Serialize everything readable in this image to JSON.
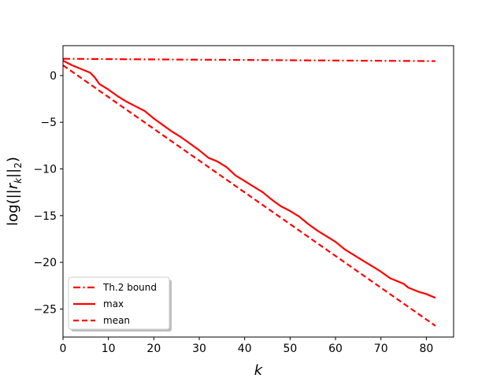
{
  "chart_data": {
    "type": "line",
    "title": "",
    "xlabel": "k",
    "ylabel": "log(||r_k||_2)",
    "xlim": [
      0,
      86
    ],
    "ylim": [
      -28,
      3.2
    ],
    "xticks": [
      0,
      10,
      20,
      30,
      40,
      50,
      60,
      70,
      80
    ],
    "yticks": [
      0,
      -5,
      -10,
      -15,
      -20,
      -25
    ],
    "xtick_labels": [
      "0",
      "10",
      "20",
      "30",
      "40",
      "50",
      "60",
      "70",
      "80"
    ],
    "ytick_labels": [
      "0",
      "−5",
      "−10",
      "−15",
      "−20",
      "−25"
    ],
    "grid": false,
    "legend_position": "lower-left",
    "series": [
      {
        "name": "Th.2 bound",
        "color": "#ff0000",
        "style": "dashdot",
        "x": [
          0,
          10,
          20,
          30,
          40,
          50,
          60,
          70,
          82
        ],
        "y": [
          1.8,
          1.76,
          1.73,
          1.7,
          1.67,
          1.64,
          1.61,
          1.58,
          1.55
        ]
      },
      {
        "name": "max",
        "color": "#ff0000",
        "style": "solid",
        "x": [
          0,
          2,
          4,
          6,
          7,
          8,
          10,
          12,
          14,
          16,
          18,
          20,
          22,
          24,
          26,
          28,
          30,
          32,
          34,
          36,
          38,
          40,
          42,
          44,
          46,
          48,
          50,
          52,
          54,
          56,
          58,
          60,
          62,
          64,
          66,
          68,
          70,
          72,
          74,
          75,
          76,
          78,
          80,
          82
        ],
        "y": [
          1.6,
          1.1,
          0.7,
          0.3,
          -0.2,
          -0.9,
          -1.5,
          -2.2,
          -2.8,
          -3.3,
          -3.8,
          -4.6,
          -5.3,
          -6.0,
          -6.6,
          -7.3,
          -8.0,
          -8.8,
          -9.2,
          -9.8,
          -10.7,
          -11.3,
          -11.9,
          -12.5,
          -13.3,
          -14.0,
          -14.5,
          -15.1,
          -15.9,
          -16.6,
          -17.2,
          -17.8,
          -18.6,
          -19.2,
          -19.8,
          -20.4,
          -21.0,
          -21.7,
          -22.1,
          -22.3,
          -22.7,
          -23.1,
          -23.4,
          -23.8
        ]
      },
      {
        "name": "mean",
        "color": "#ff0000",
        "style": "dashed",
        "x": [
          0,
          82
        ],
        "y": [
          1.1,
          -26.8
        ]
      }
    ]
  }
}
